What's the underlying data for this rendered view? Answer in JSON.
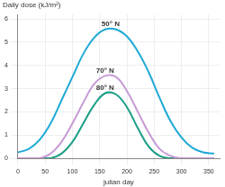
{
  "chart_data": {
    "type": "line",
    "y_label": "Daily dose (kJ/m²)",
    "x_label": "julian day",
    "x": [
      0,
      20,
      40,
      60,
      80,
      100,
      120,
      140,
      160,
      180,
      200,
      220,
      240,
      260,
      280,
      300,
      320,
      340,
      360
    ],
    "series": [
      {
        "name": "50° N",
        "color": "#1fa9d6",
        "values": [
          0.25,
          0.4,
          0.8,
          1.5,
          2.5,
          3.5,
          4.5,
          5.2,
          5.55,
          5.55,
          5.25,
          4.6,
          3.7,
          2.6,
          1.6,
          0.9,
          0.45,
          0.25,
          0.2
        ]
      },
      {
        "name": "70° N",
        "color": "#c79bd6",
        "values": [
          0,
          0,
          0,
          0.2,
          0.7,
          1.5,
          2.4,
          3.2,
          3.55,
          3.5,
          2.9,
          2.0,
          1.1,
          0.4,
          0.1,
          0,
          0,
          0,
          0
        ]
      },
      {
        "name": "80° N",
        "color": "#1a9e86",
        "values": [
          0,
          0,
          0,
          0,
          0.2,
          0.7,
          1.5,
          2.3,
          2.8,
          2.75,
          2.2,
          1.3,
          0.5,
          0.1,
          0,
          0,
          0,
          0,
          0
        ]
      }
    ],
    "xlim": [
      0,
      370
    ],
    "xticks": [
      0,
      50,
      100,
      150,
      200,
      250,
      300,
      350
    ],
    "ylim": [
      0,
      6.2
    ],
    "yticks": [
      0,
      1,
      2,
      3,
      4,
      5,
      6
    ],
    "grid": true
  }
}
